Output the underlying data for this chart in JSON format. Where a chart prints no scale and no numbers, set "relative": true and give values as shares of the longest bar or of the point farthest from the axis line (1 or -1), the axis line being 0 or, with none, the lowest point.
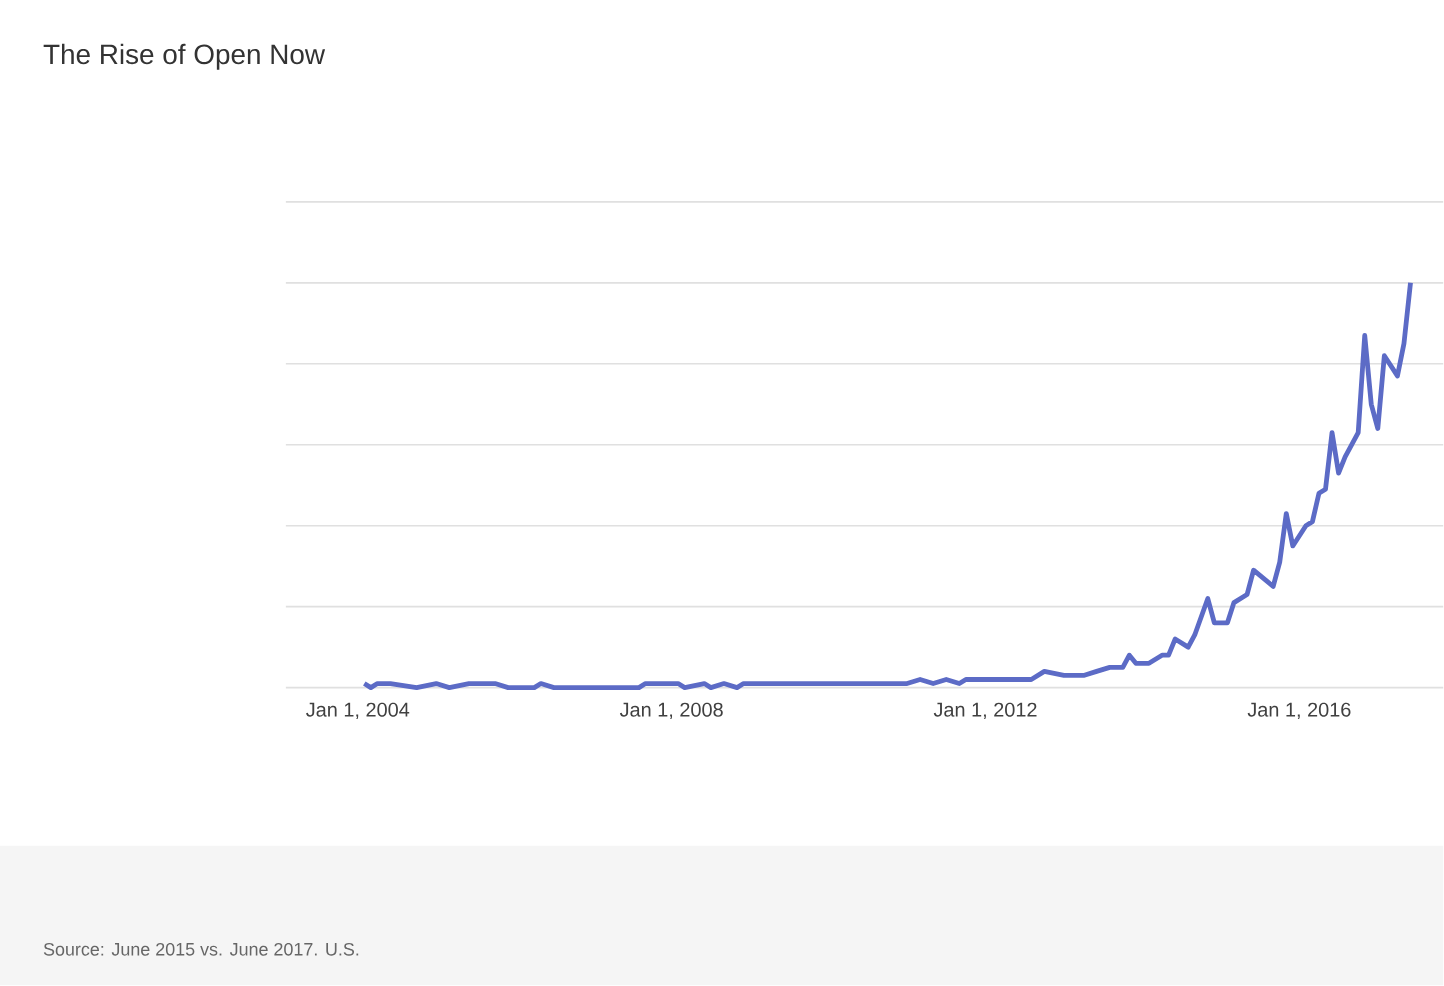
{
  "chart_data": {
    "type": "line",
    "title": "The Rise of Open Now",
    "relative": true,
    "grid": "y",
    "color": "#5c6bc6",
    "x": [
      "2004-02",
      "2004-03",
      "2004-04",
      "2004-06",
      "2004-10",
      "2005-01",
      "2005-03",
      "2005-06",
      "2005-08",
      "2005-10",
      "2005-12",
      "2006-04",
      "2006-05",
      "2006-07",
      "2007-08",
      "2007-09",
      "2007-11",
      "2008-02",
      "2008-03",
      "2008-06",
      "2008-07",
      "2008-09",
      "2008-11",
      "2008-12",
      "2010-11",
      "2011-01",
      "2011-03",
      "2011-05",
      "2011-07",
      "2011-09",
      "2011-10",
      "2012-03",
      "2012-08",
      "2012-10",
      "2013-01",
      "2013-04",
      "2013-06",
      "2013-08",
      "2013-10",
      "2013-11",
      "2013-12",
      "2014-02",
      "2014-04",
      "2014-05",
      "2014-06",
      "2014-08",
      "2014-09",
      "2014-11",
      "2014-12",
      "2015-02",
      "2015-03",
      "2015-05",
      "2015-06",
      "2015-09",
      "2015-10",
      "2015-11",
      "2015-12",
      "2016-02",
      "2016-03",
      "2016-04",
      "2016-05",
      "2016-06",
      "2016-07",
      "2016-08",
      "2016-10",
      "2016-11",
      "2016-12",
      "2017-01",
      "2017-02",
      "2017-04",
      "2017-05",
      "2017-06"
    ],
    "values": [
      0.01,
      0,
      0.01,
      0.01,
      0,
      0.01,
      0,
      0.01,
      0.01,
      0.01,
      0,
      0,
      0.01,
      0,
      0,
      0.01,
      0.01,
      0.01,
      0,
      0.01,
      0,
      0.01,
      0,
      0.01,
      0.01,
      0.01,
      0.02,
      0.01,
      0.02,
      0.01,
      0.02,
      0.02,
      0.02,
      0.04,
      0.03,
      0.03,
      0.04,
      0.05,
      0.05,
      0.08,
      0.06,
      0.06,
      0.08,
      0.08,
      0.12,
      0.1,
      0.13,
      0.22,
      0.16,
      0.16,
      0.21,
      0.23,
      0.29,
      0.25,
      0.31,
      0.43,
      0.35,
      0.4,
      0.41,
      0.48,
      0.49,
      0.63,
      0.53,
      0.57,
      0.63,
      0.87,
      0.7,
      0.64,
      0.82,
      0.77,
      0.85,
      1
    ],
    "xlim": [
      "2003-02",
      "2017-11"
    ],
    "xticks": [
      {
        "value": "2004-01-01",
        "label": "Jan 1, 2004"
      },
      {
        "value": "2008-01-01",
        "label": "Jan 1, 2008"
      },
      {
        "value": "2012-01-01",
        "label": "Jan 1, 2012"
      },
      {
        "value": "2016-01-01",
        "label": "Jan 1, 2016"
      }
    ],
    "annotations": [
      "Source: June 2015 vs. June 2017. U.S."
    ]
  }
}
